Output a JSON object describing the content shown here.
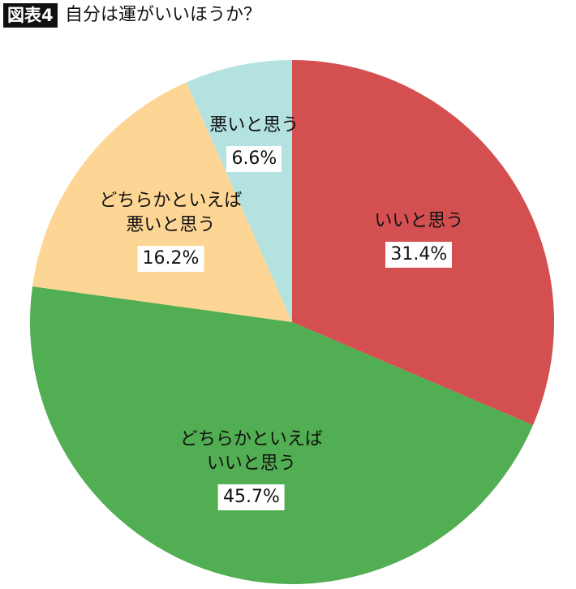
{
  "chart_data": {
    "type": "pie",
    "figure_label": "図表4",
    "title": "自分は運がいいほうか？",
    "categories": [
      "いいと思う",
      "どちらかといえばいいと思う",
      "どちらかといえば悪いと思う",
      "悪いと思う"
    ],
    "values": [
      31.4,
      45.7,
      16.2,
      6.6
    ],
    "value_labels": [
      "31.4%",
      "45.7%",
      "16.2%",
      "6.6%"
    ],
    "colors": [
      "#d44f50",
      "#52ae52",
      "#fdd594",
      "#b3e2e1"
    ]
  }
}
